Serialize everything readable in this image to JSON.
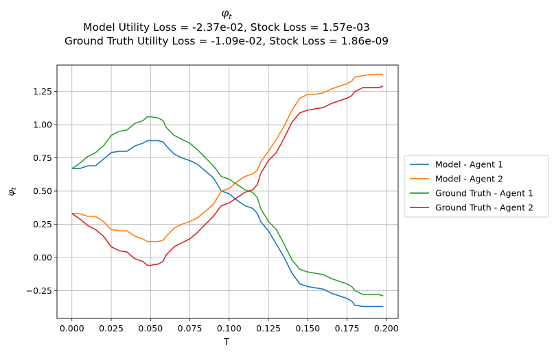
{
  "chart_data": {
    "type": "line",
    "title": "φt",
    "subtitle_lines": [
      "Model Utility Loss = -2.37e-02, Stock Loss = 1.57e-03",
      "Ground Truth Utility Loss = -1.09e-02, Stock Loss = 1.86e-09"
    ],
    "xlabel": "T",
    "ylabel": "φt",
    "xlim": [
      -0.0095,
      0.2075
    ],
    "ylim": [
      -0.46,
      1.45
    ],
    "xticks": [
      "0.000",
      "0.025",
      "0.050",
      "0.075",
      "0.100",
      "0.125",
      "0.150",
      "0.175",
      "0.200"
    ],
    "xtick_values": [
      0,
      0.025,
      0.05,
      0.075,
      0.1,
      0.125,
      0.15,
      0.175,
      0.2
    ],
    "yticks": [
      "−0.25",
      "0.00",
      "0.25",
      "0.50",
      "0.75",
      "1.00",
      "1.25"
    ],
    "ytick_values": [
      -0.25,
      0,
      0.25,
      0.5,
      0.75,
      1.0,
      1.25
    ],
    "grid": true,
    "legend_position": "right-outside",
    "x": [
      0.0,
      0.005,
      0.01,
      0.015,
      0.02,
      0.025,
      0.03,
      0.035,
      0.04,
      0.045,
      0.048,
      0.05,
      0.055,
      0.058,
      0.06,
      0.065,
      0.07,
      0.075,
      0.08,
      0.085,
      0.09,
      0.095,
      0.1,
      0.105,
      0.11,
      0.115,
      0.118,
      0.12,
      0.125,
      0.13,
      0.135,
      0.14,
      0.145,
      0.15,
      0.155,
      0.16,
      0.165,
      0.17,
      0.175,
      0.178,
      0.18,
      0.185,
      0.19,
      0.195,
      0.198
    ],
    "series": [
      {
        "name": "Model - Agent 1",
        "color": "#1f77b4",
        "values": [
          0.67,
          0.67,
          0.69,
          0.69,
          0.74,
          0.79,
          0.8,
          0.8,
          0.84,
          0.86,
          0.88,
          0.88,
          0.88,
          0.87,
          0.84,
          0.78,
          0.75,
          0.73,
          0.7,
          0.65,
          0.6,
          0.5,
          0.48,
          0.43,
          0.39,
          0.37,
          0.33,
          0.27,
          0.2,
          0.1,
          0.0,
          -0.12,
          -0.2,
          -0.22,
          -0.23,
          -0.24,
          -0.27,
          -0.29,
          -0.31,
          -0.33,
          -0.36,
          -0.37,
          -0.37,
          -0.37,
          -0.37
        ]
      },
      {
        "name": "Model - Agent 2",
        "color": "#ff7f0e",
        "values": [
          0.33,
          0.33,
          0.31,
          0.31,
          0.27,
          0.21,
          0.2,
          0.2,
          0.16,
          0.14,
          0.12,
          0.12,
          0.12,
          0.13,
          0.16,
          0.22,
          0.25,
          0.27,
          0.3,
          0.35,
          0.4,
          0.5,
          0.52,
          0.57,
          0.61,
          0.63,
          0.66,
          0.72,
          0.8,
          0.89,
          0.99,
          1.11,
          1.2,
          1.23,
          1.23,
          1.24,
          1.27,
          1.29,
          1.31,
          1.33,
          1.36,
          1.37,
          1.38,
          1.38,
          1.38
        ]
      },
      {
        "name": "Ground Truth - Agent 1",
        "color": "#2ca02c",
        "values": [
          0.67,
          0.71,
          0.76,
          0.79,
          0.84,
          0.92,
          0.95,
          0.96,
          1.01,
          1.03,
          1.06,
          1.06,
          1.05,
          1.03,
          0.98,
          0.92,
          0.89,
          0.86,
          0.81,
          0.75,
          0.69,
          0.61,
          0.59,
          0.55,
          0.51,
          0.49,
          0.45,
          0.37,
          0.27,
          0.21,
          0.1,
          -0.02,
          -0.09,
          -0.11,
          -0.12,
          -0.13,
          -0.16,
          -0.18,
          -0.2,
          -0.22,
          -0.25,
          -0.28,
          -0.28,
          -0.28,
          -0.29
        ]
      },
      {
        "name": "Ground Truth - Agent 2",
        "color": "#d62728",
        "values": [
          0.33,
          0.29,
          0.24,
          0.21,
          0.16,
          0.08,
          0.05,
          0.04,
          -0.01,
          -0.03,
          -0.06,
          -0.06,
          -0.05,
          -0.03,
          0.02,
          0.08,
          0.11,
          0.14,
          0.19,
          0.25,
          0.31,
          0.39,
          0.41,
          0.45,
          0.49,
          0.51,
          0.55,
          0.63,
          0.73,
          0.79,
          0.9,
          1.02,
          1.09,
          1.11,
          1.12,
          1.13,
          1.16,
          1.18,
          1.2,
          1.22,
          1.25,
          1.28,
          1.28,
          1.28,
          1.29
        ]
      }
    ]
  }
}
